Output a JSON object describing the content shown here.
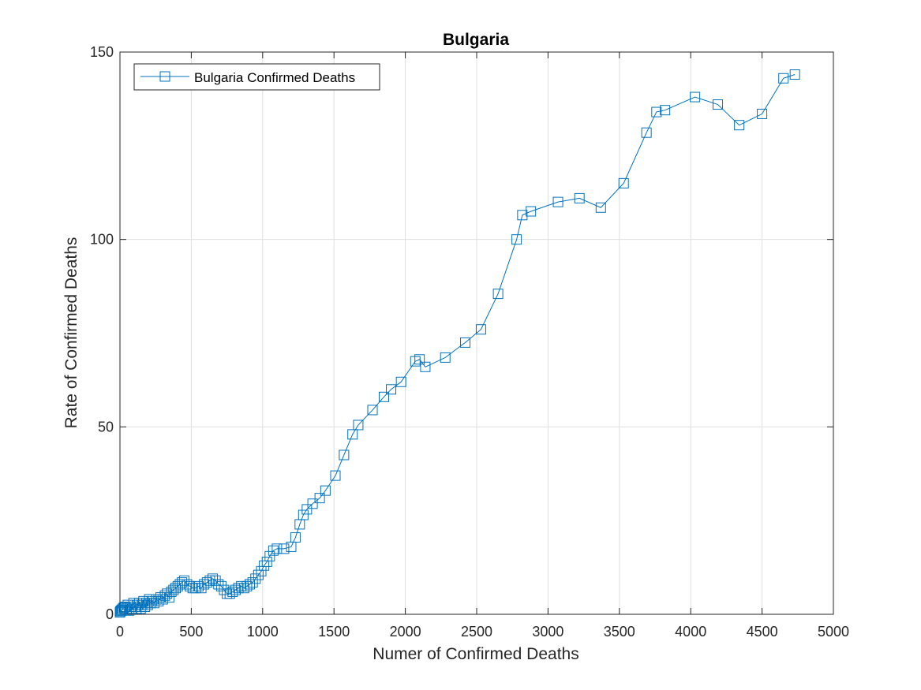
{
  "chart_data": {
    "type": "line",
    "title": "Bulgaria",
    "xlabel": "Numer of Confirmed Deaths",
    "ylabel": "Rate of Confirmed Deaths",
    "xlim": [
      0,
      5000
    ],
    "ylim": [
      0,
      150
    ],
    "xticks": [
      "0",
      "500",
      "1000",
      "1500",
      "2000",
      "2500",
      "3000",
      "3500",
      "4000",
      "4500",
      "5000"
    ],
    "yticks": [
      "0",
      "50",
      "100",
      "150"
    ],
    "grid": true,
    "legend_position": "top-left",
    "marker": "square",
    "colors": {
      "series": "#0072BD",
      "grid": "#dfdfdf",
      "axis": "#262626"
    },
    "series": [
      {
        "name": "Bulgaria Confirmed Deaths",
        "x": [
          0,
          3,
          8,
          14,
          20,
          28,
          36,
          45,
          55,
          65,
          75,
          85,
          95,
          105,
          115,
          125,
          135,
          145,
          155,
          165,
          175,
          185,
          195,
          205,
          215,
          225,
          240,
          255,
          270,
          285,
          300,
          315,
          330,
          345,
          360,
          375,
          390,
          405,
          420,
          435,
          450,
          470,
          490,
          510,
          530,
          550,
          570,
          590,
          610,
          630,
          650,
          670,
          690,
          710,
          730,
          750,
          770,
          790,
          810,
          830,
          850,
          870,
          890,
          910,
          930,
          950,
          970,
          990,
          1010,
          1030,
          1050,
          1075,
          1100,
          1150,
          1200,
          1230,
          1260,
          1285,
          1310,
          1350,
          1400,
          1440,
          1510,
          1570,
          1630,
          1670,
          1770,
          1850,
          1900,
          1970,
          2070,
          2100,
          2140,
          2280,
          2420,
          2530,
          2650,
          2780,
          2820,
          2880,
          3070,
          3220,
          3370,
          3530,
          3690,
          3760,
          3820,
          4030,
          4190,
          4340,
          4500,
          4650,
          4730
        ],
        "y": [
          0.5,
          0.8,
          1.0,
          1.2,
          1.5,
          1.8,
          2.0,
          1.5,
          2.5,
          1.0,
          2.0,
          1.5,
          3.0,
          2.0,
          1.5,
          2.5,
          3.0,
          1.5,
          2.5,
          3.5,
          2.0,
          3.0,
          2.5,
          4.0,
          3.0,
          3.5,
          3.0,
          4.0,
          3.5,
          4.5,
          4.0,
          5.0,
          5.5,
          4.5,
          6.0,
          6.5,
          7.0,
          7.5,
          8.0,
          8.5,
          9.0,
          8.0,
          7.5,
          7.0,
          7.0,
          7.5,
          7.0,
          8.0,
          8.5,
          9.0,
          9.5,
          9.0,
          8.0,
          7.5,
          6.5,
          5.5,
          5.5,
          6.0,
          6.5,
          7.0,
          7.5,
          7.0,
          7.5,
          8.0,
          8.5,
          9.5,
          10.5,
          11.5,
          13.0,
          14.0,
          15.5,
          17.0,
          17.5,
          17.5,
          18.0,
          20.5,
          24.0,
          26.5,
          28.0,
          29.5,
          31.0,
          33.0,
          37.0,
          42.5,
          48.0,
          50.5,
          54.5,
          58.0,
          60.0,
          62.0,
          67.5,
          68.0,
          66.0,
          68.5,
          72.5,
          76.0,
          85.5,
          100.0,
          106.5,
          107.5,
          110.0,
          111.0,
          108.5,
          115.0,
          128.5,
          134.0,
          134.5,
          138.0,
          136.0,
          130.5,
          133.5,
          143.0,
          144.0
        ]
      }
    ]
  }
}
